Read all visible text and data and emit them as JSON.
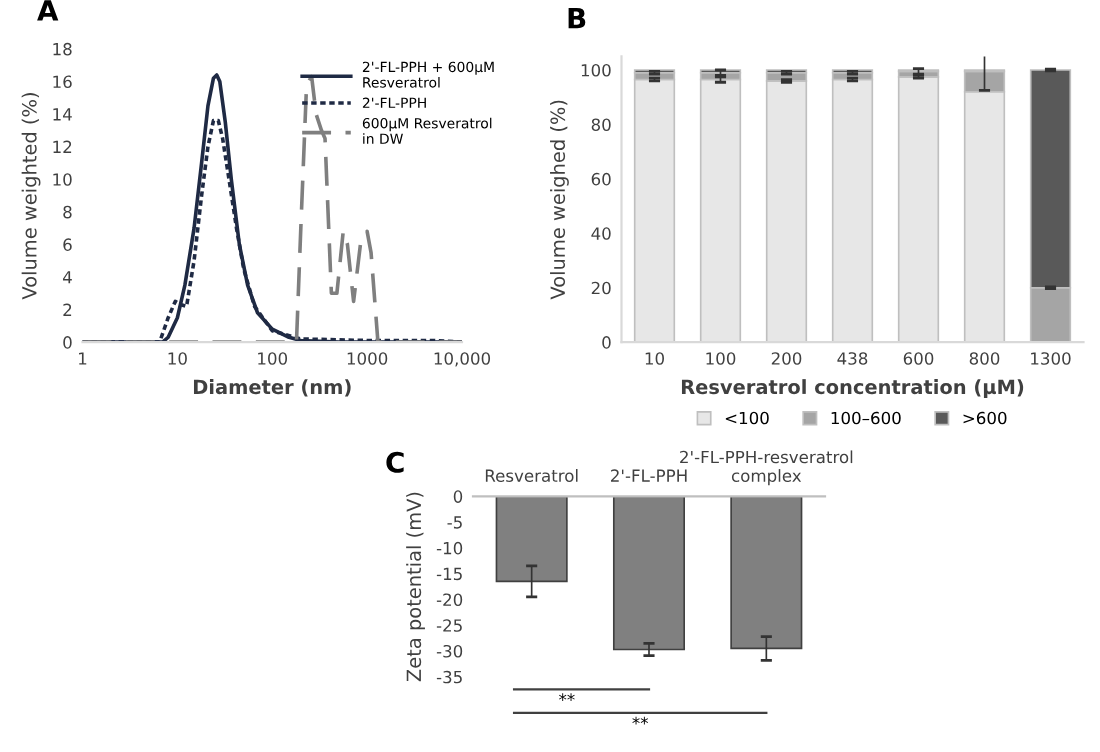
{
  "chart_data": [
    {
      "type": "line",
      "title": "A",
      "xlabel": "Diameter (nm)",
      "ylabel": "Volume weighted (%)",
      "log": "x",
      "xlim": [
        1,
        10000
      ],
      "xticks": [
        1,
        10,
        100,
        {
          "value": 1000,
          "label": "1000"
        },
        {
          "value": 10000,
          "label": "10,000"
        }
      ],
      "ylim": [
        0,
        18
      ],
      "yticks": [
        0,
        2,
        4,
        6,
        8,
        10,
        12,
        14,
        16,
        18
      ],
      "legend": "top right",
      "marker": "none",
      "series": [
        {
          "name": "2'-FL-PPH + 600μM\nResveratrol",
          "color": "#1f2a44",
          "line_style": "solid",
          "x": [
            1,
            7,
            8,
            10,
            12,
            15,
            18,
            21,
            24,
            26,
            28,
            32,
            37,
            45,
            55,
            70,
            100,
            150,
            200,
            500,
            10000
          ],
          "values": [
            0,
            0,
            0.3,
            1.5,
            3.5,
            7,
            11,
            14.5,
            16.2,
            16.4,
            16,
            13.5,
            10,
            6,
            3.5,
            1.8,
            0.8,
            0.3,
            0.1,
            0,
            0
          ]
        },
        {
          "name": "2'-FL-PPH",
          "color": "#1f2a44",
          "line_style": "dotted",
          "x": [
            1,
            6.5,
            8,
            9.5,
            11,
            12.5,
            15,
            18,
            21,
            24,
            27,
            30,
            35,
            42,
            50,
            65,
            100,
            200,
            1000,
            5000,
            10000
          ],
          "values": [
            0,
            0,
            1.5,
            2.5,
            2.3,
            2.2,
            5,
            9,
            12,
            13.6,
            13.6,
            12.5,
            10,
            7,
            4.5,
            2.2,
            0.7,
            0.2,
            0.1,
            0.1,
            0
          ]
        },
        {
          "name": "600μM Resveratrol\nin DW",
          "color": "#7f7f7f",
          "line_style": "dashed",
          "x": [
            1,
            180,
            200,
            230,
            260,
            290,
            330,
            360,
            420,
            480,
            560,
            620,
            720,
            850,
            1000,
            1100,
            1300,
            10000
          ],
          "values": [
            0,
            0,
            7,
            15.8,
            16.3,
            14,
            13,
            12.5,
            3,
            3,
            6.8,
            6,
            2.5,
            6,
            6.8,
            5.5,
            0,
            0
          ]
        }
      ]
    },
    {
      "type": "bar",
      "stacked": true,
      "title": "B",
      "xlabel": "Resveratrol concentration (μM)",
      "ylabel": "Volume weighed (%)",
      "categories": [
        "10",
        "100",
        "200",
        "438",
        "600",
        "800",
        "1300"
      ],
      "ylim": [
        0,
        105
      ],
      "yticks": [
        0,
        20,
        40,
        60,
        80,
        100
      ],
      "legend": "bottom",
      "series": [
        {
          "name": "<100",
          "color": "#e7e7e7",
          "values": [
            96.5,
            96.5,
            96,
            96.5,
            97.5,
            92,
            0
          ],
          "errors": [
            0.5,
            1,
            0.5,
            0.5,
            0.5,
            null,
            null
          ]
        },
        {
          "name": "100–600",
          "color": "#a5a5a5",
          "values": [
            2.5,
            2.5,
            3,
            2.5,
            2,
            7.5,
            20
          ],
          "errors": [
            0.5,
            1,
            0.5,
            0.5,
            1,
            7,
            0.3
          ]
        },
        {
          "name": ">600",
          "color": "#595959",
          "values": [
            1,
            1,
            1,
            1,
            0.5,
            0.5,
            80
          ],
          "errors": [
            null,
            null,
            null,
            null,
            null,
            null,
            0.3
          ]
        }
      ]
    },
    {
      "type": "bar",
      "title": "C",
      "ylabel": "Zeta potential (mV)",
      "categories": [
        "Resveratrol",
        "2'-FL-PPH",
        "2'-FL-PPH-resveratrol\ncomplex"
      ],
      "ylim": [
        -35,
        0
      ],
      "yticks": [
        0,
        -5,
        -10,
        -15,
        -20,
        -25,
        -30,
        -35
      ],
      "series": [
        {
          "color": "#808080",
          "values": [
            -16.5,
            -29.7,
            -29.5
          ],
          "errors": [
            3,
            1.2,
            2.3
          ]
        }
      ],
      "annotations": [
        "**",
        "**"
      ]
    }
  ]
}
